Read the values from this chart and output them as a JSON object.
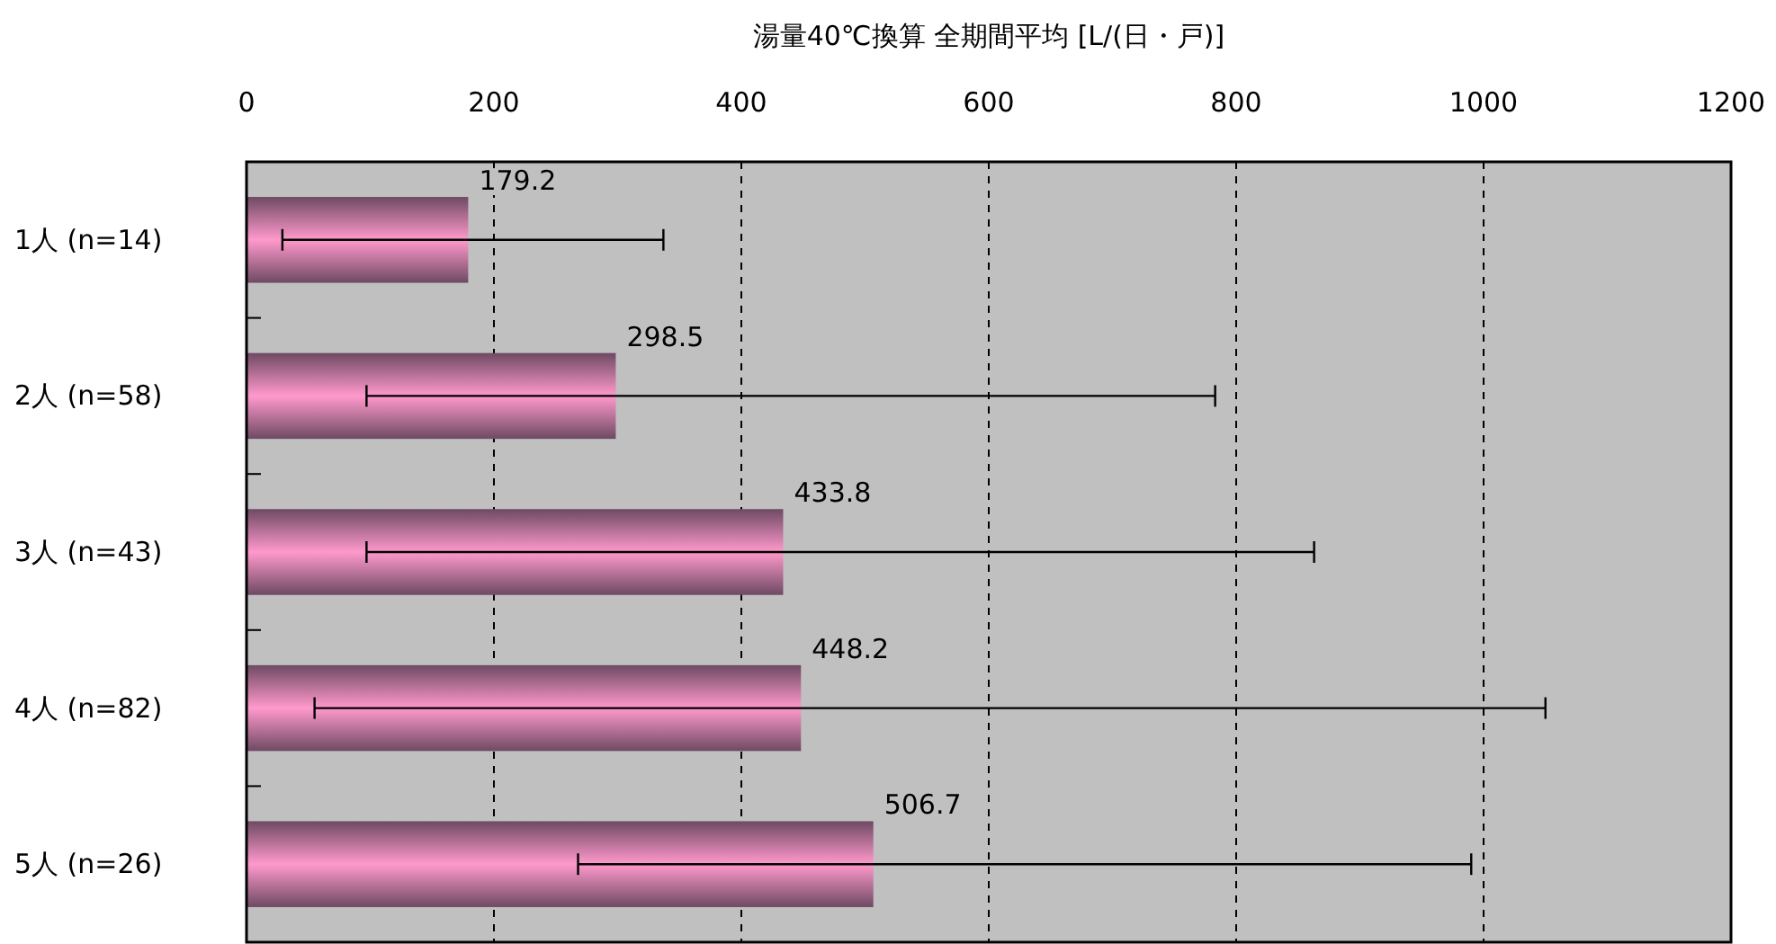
{
  "chart_data": {
    "type": "bar",
    "orientation": "horizontal",
    "xlabel": "湯量40℃換算 全期間平均 [L/(日・戸)]",
    "categories": [
      "1人 (n=14)",
      "2人 (n=58)",
      "3人 (n=43)",
      "4人 (n=82)",
      "5人 (n=26)"
    ],
    "values": [
      179.2,
      298.5,
      433.8,
      448.2,
      506.7
    ],
    "errors": [
      [
        29,
        337
      ],
      [
        97,
        783
      ],
      [
        97,
        863
      ],
      [
        55,
        1050
      ],
      [
        268,
        990
      ]
    ],
    "color": "#ff99cc",
    "data_labels": true,
    "xlim": [
      0,
      1200
    ],
    "xticks": [
      0,
      200,
      400,
      600,
      800,
      1000,
      1200
    ],
    "grid": "x"
  }
}
